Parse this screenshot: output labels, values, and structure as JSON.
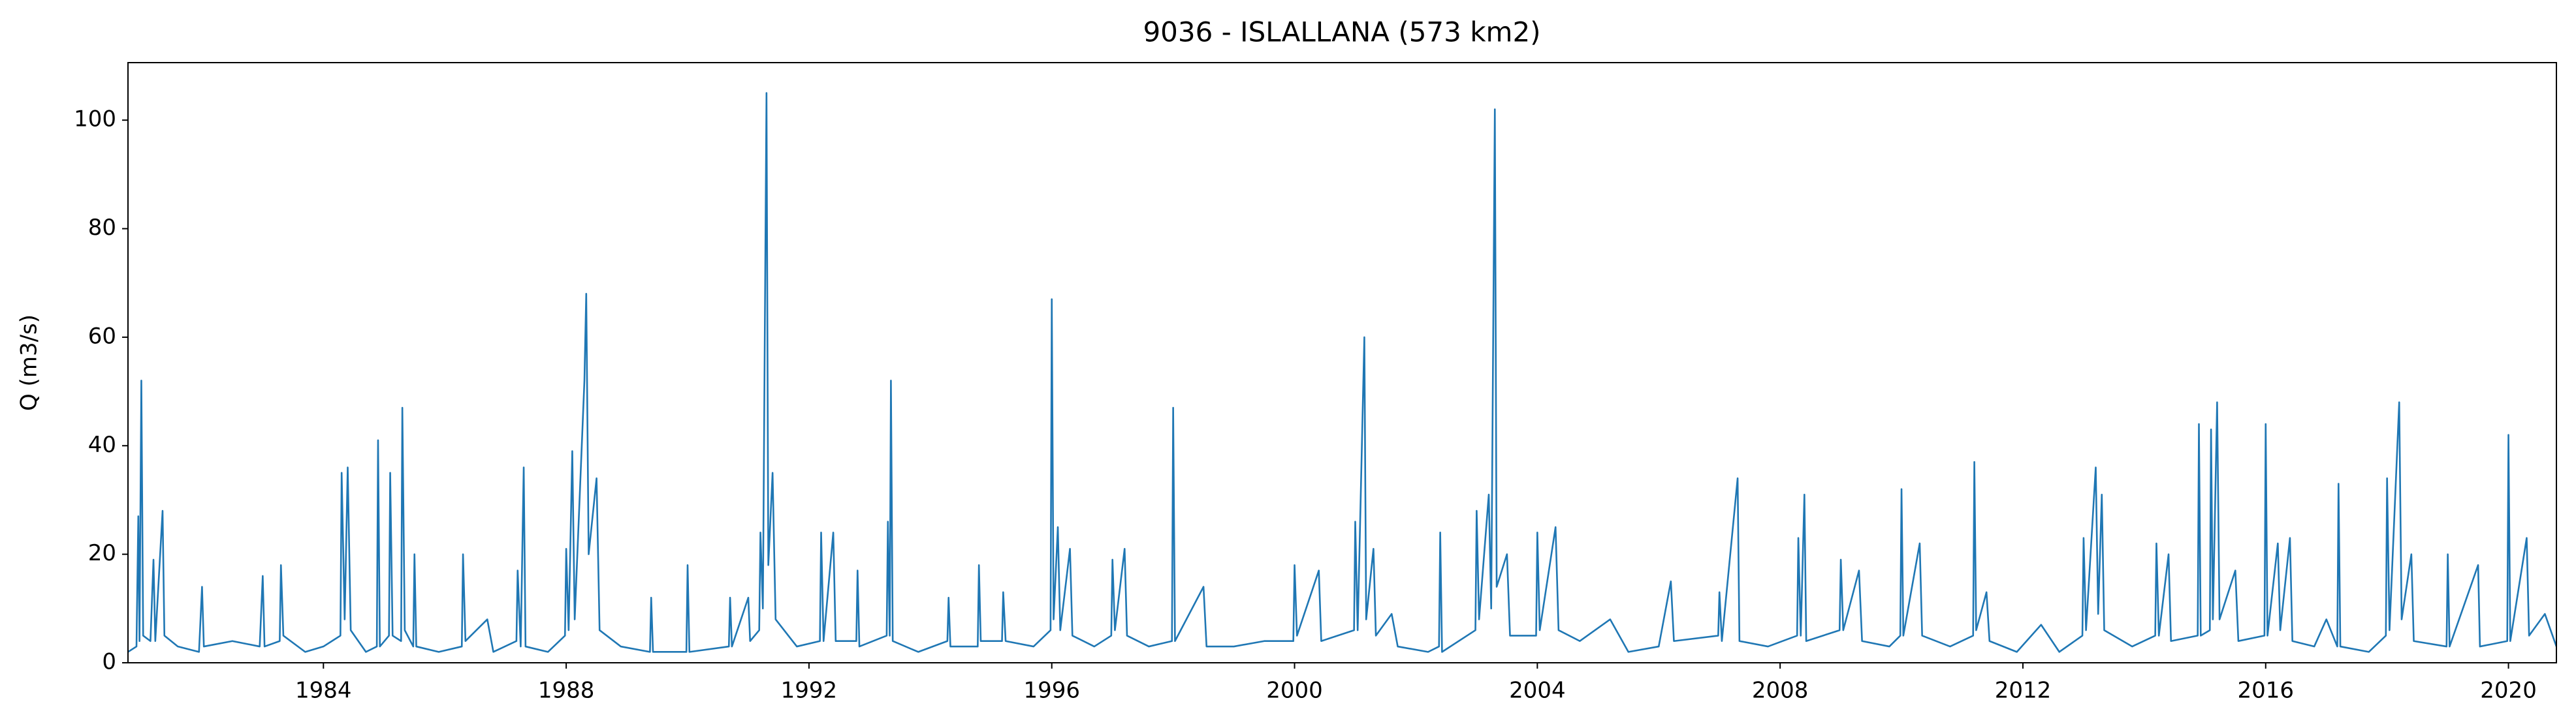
{
  "chart_data": {
    "type": "line",
    "title": "9036 - ISLALLANA (573 km2)",
    "ylabel": "Q (m3/s)",
    "xlim": [
      1980.78,
      2020.79
    ],
    "xticks": [
      1984,
      1988,
      1992,
      1996,
      2000,
      2004,
      2008,
      2012,
      2016,
      2020
    ],
    "ylim": [
      0,
      110.6
    ],
    "yticks": [
      0,
      20,
      40,
      60,
      80,
      100
    ],
    "grid": false,
    "series": [
      {
        "color": "#1f77b4",
        "x": [
          1980.78,
          1980.92,
          1980.95,
          1980.97,
          1981.0,
          1981.03,
          1981.15,
          1981.2,
          1981.23,
          1981.35,
          1981.38,
          1981.6,
          1981.95,
          1982.0,
          1982.03,
          1982.5,
          1982.95,
          1983.0,
          1983.03,
          1983.28,
          1983.3,
          1983.34,
          1983.7,
          1984.0,
          1984.28,
          1984.3,
          1984.35,
          1984.4,
          1984.45,
          1984.7,
          1984.88,
          1984.9,
          1984.93,
          1985.08,
          1985.1,
          1985.14,
          1985.28,
          1985.3,
          1985.34,
          1985.48,
          1985.5,
          1985.53,
          1985.9,
          1986.28,
          1986.3,
          1986.34,
          1986.7,
          1986.8,
          1987.18,
          1987.2,
          1987.25,
          1987.3,
          1987.33,
          1987.7,
          1987.98,
          1988.0,
          1988.04,
          1988.1,
          1988.14,
          1988.3,
          1988.33,
          1988.37,
          1988.5,
          1988.55,
          1988.9,
          1989.38,
          1989.4,
          1989.43,
          1989.98,
          1990.0,
          1990.03,
          1990.68,
          1990.7,
          1990.73,
          1991.0,
          1991.03,
          1991.18,
          1991.2,
          1991.24,
          1991.3,
          1991.33,
          1991.4,
          1991.45,
          1991.8,
          1992.18,
          1992.2,
          1992.24,
          1992.4,
          1992.44,
          1992.78,
          1992.8,
          1992.83,
          1993.28,
          1993.3,
          1993.33,
          1993.35,
          1993.38,
          1993.8,
          1994.28,
          1994.3,
          1994.33,
          1994.78,
          1994.8,
          1994.83,
          1995.18,
          1995.2,
          1995.24,
          1995.7,
          1995.98,
          1996.0,
          1996.03,
          1996.1,
          1996.14,
          1996.3,
          1996.34,
          1996.7,
          1996.98,
          1997.0,
          1997.04,
          1997.2,
          1997.24,
          1997.6,
          1997.98,
          1998.0,
          1998.03,
          1998.5,
          1998.55,
          1999.0,
          1999.5,
          1999.98,
          2000.0,
          2000.04,
          2000.4,
          2000.44,
          2000.98,
          2001.0,
          2001.04,
          2001.15,
          2001.18,
          2001.3,
          2001.34,
          2001.6,
          2001.7,
          2002.2,
          2002.38,
          2002.4,
          2002.43,
          2002.98,
          2003.0,
          2003.04,
          2003.2,
          2003.24,
          2003.3,
          2003.33,
          2003.5,
          2003.55,
          2003.98,
          2004.0,
          2004.04,
          2004.3,
          2004.35,
          2004.7,
          2005.2,
          2005.5,
          2006.0,
          2006.2,
          2006.25,
          2006.98,
          2007.0,
          2007.04,
          2007.3,
          2007.33,
          2007.8,
          2008.28,
          2008.3,
          2008.34,
          2008.4,
          2008.43,
          2008.98,
          2009.0,
          2009.04,
          2009.3,
          2009.35,
          2009.8,
          2009.98,
          2010.0,
          2010.03,
          2010.3,
          2010.34,
          2010.8,
          2011.18,
          2011.2,
          2011.23,
          2011.4,
          2011.45,
          2011.9,
          2012.3,
          2012.6,
          2012.98,
          2013.0,
          2013.04,
          2013.2,
          2013.24,
          2013.3,
          2013.34,
          2013.8,
          2014.18,
          2014.2,
          2014.24,
          2014.4,
          2014.44,
          2014.88,
          2014.9,
          2014.93,
          2015.08,
          2015.1,
          2015.13,
          2015.2,
          2015.24,
          2015.5,
          2015.55,
          2015.98,
          2016.0,
          2016.03,
          2016.2,
          2016.24,
          2016.4,
          2016.44,
          2016.8,
          2017.0,
          2017.18,
          2017.2,
          2017.23,
          2017.7,
          2017.98,
          2018.0,
          2018.04,
          2018.2,
          2018.24,
          2018.4,
          2018.44,
          2018.98,
          2019.0,
          2019.03,
          2019.5,
          2019.53,
          2019.98,
          2020.0,
          2020.03,
          2020.3,
          2020.34,
          2020.6,
          2020.79
        ],
        "values": [
          2,
          3,
          27,
          4,
          52,
          5,
          4,
          19,
          4,
          28,
          5,
          3,
          2,
          14,
          3,
          4,
          3,
          16,
          3,
          4,
          18,
          5,
          2,
          3,
          5,
          35,
          8,
          36,
          6,
          2,
          3,
          41,
          3,
          5,
          35,
          5,
          4,
          47,
          6,
          3,
          20,
          3,
          2,
          3,
          20,
          4,
          8,
          2,
          4,
          17,
          3,
          36,
          3,
          2,
          5,
          21,
          6,
          39,
          8,
          52,
          68,
          20,
          34,
          6,
          3,
          2,
          12,
          2,
          2,
          18,
          2,
          3,
          12,
          3,
          12,
          4,
          6,
          24,
          10,
          105,
          18,
          35,
          8,
          3,
          4,
          24,
          4,
          24,
          4,
          4,
          17,
          3,
          5,
          26,
          5,
          52,
          4,
          2,
          4,
          12,
          3,
          3,
          18,
          4,
          4,
          13,
          4,
          3,
          6,
          67,
          8,
          25,
          6,
          21,
          5,
          3,
          5,
          19,
          6,
          21,
          5,
          3,
          4,
          47,
          4,
          14,
          3,
          3,
          4,
          4,
          18,
          5,
          17,
          4,
          6,
          26,
          6,
          60,
          8,
          21,
          5,
          9,
          3,
          2,
          3,
          24,
          2,
          6,
          28,
          8,
          31,
          10,
          102,
          14,
          20,
          5,
          5,
          24,
          6,
          25,
          6,
          4,
          8,
          2,
          3,
          15,
          4,
          5,
          13,
          4,
          34,
          4,
          3,
          5,
          23,
          5,
          31,
          4,
          6,
          19,
          6,
          17,
          4,
          3,
          5,
          32,
          5,
          22,
          5,
          3,
          5,
          37,
          6,
          13,
          4,
          2,
          7,
          2,
          5,
          23,
          6,
          36,
          9,
          31,
          6,
          3,
          5,
          22,
          5,
          20,
          4,
          5,
          44,
          5,
          6,
          43,
          8,
          48,
          8,
          17,
          4,
          5,
          44,
          5,
          22,
          6,
          23,
          4,
          3,
          8,
          3,
          33,
          3,
          2,
          5,
          34,
          6,
          48,
          8,
          20,
          4,
          3,
          20,
          3,
          18,
          3,
          4,
          42,
          4,
          23,
          5,
          9,
          3
        ]
      }
    ]
  }
}
